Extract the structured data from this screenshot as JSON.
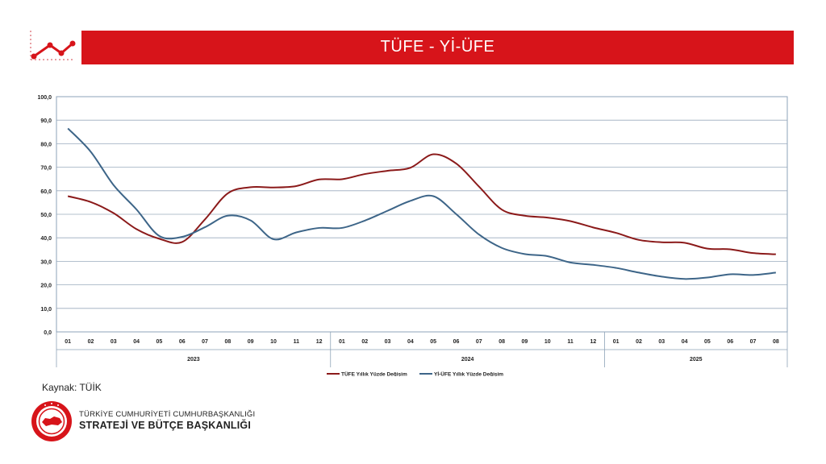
{
  "header": {
    "title": "TÜFE - Yİ-ÜFE"
  },
  "source": {
    "label": "Kaynak: TÜİK"
  },
  "footer": {
    "line1": "TÜRKİYE CUMHURİYETİ CUMHURBAŞKANLIĞI",
    "line2": "STRATEJİ VE BÜTÇE BAŞKANLIĞI"
  },
  "colors": {
    "header_bg": "#d7141a",
    "tufe": "#8b1a1a",
    "yiufe": "#3d6588"
  },
  "icons": {
    "header_logo": "line-chart-icon",
    "seal": "presidency-seal-icon"
  },
  "chart_data": {
    "type": "line",
    "ylim": [
      0,
      100
    ],
    "yticks": [
      "0,0",
      "10,0",
      "20,0",
      "30,0",
      "40,0",
      "50,0",
      "60,0",
      "70,0",
      "80,0",
      "90,0",
      "100,0"
    ],
    "months": [
      "01",
      "02",
      "03",
      "04",
      "05",
      "06",
      "07",
      "08",
      "09",
      "10",
      "11",
      "12",
      "01",
      "02",
      "03",
      "04",
      "05",
      "06",
      "07",
      "08",
      "09",
      "10",
      "11",
      "12",
      "01",
      "02",
      "03",
      "04",
      "05",
      "06",
      "07",
      "08"
    ],
    "years": [
      {
        "label": "2023",
        "count": 12
      },
      {
        "label": "2024",
        "count": 12
      },
      {
        "label": "2025",
        "count": 8
      }
    ],
    "grid": true,
    "legend_position": "bottom",
    "series": [
      {
        "name": "TÜFE Yıllık Yüzde Değişim",
        "color": "#8b1a1a",
        "values": [
          57.7,
          55.2,
          50.5,
          43.7,
          39.6,
          38.2,
          47.8,
          58.9,
          61.5,
          61.4,
          62.0,
          64.8,
          64.9,
          67.1,
          68.5,
          69.8,
          75.5,
          71.6,
          61.8,
          52.0,
          49.4,
          48.6,
          47.1,
          44.4,
          42.1,
          39.1,
          38.1,
          37.9,
          35.4,
          35.1,
          33.5,
          33.0
        ]
      },
      {
        "name": "Yİ-ÜFE Yıllık Yüzde Değişim",
        "color": "#3d6588",
        "values": [
          86.5,
          76.6,
          62.4,
          52.1,
          40.8,
          40.4,
          44.5,
          49.4,
          47.4,
          39.4,
          42.3,
          44.2,
          44.2,
          47.3,
          51.5,
          55.7,
          57.7,
          50.1,
          41.4,
          35.7,
          33.1,
          32.2,
          29.5,
          28.5,
          27.2,
          25.2,
          23.5,
          22.5,
          23.1,
          24.5,
          24.2,
          25.2
        ]
      }
    ]
  }
}
